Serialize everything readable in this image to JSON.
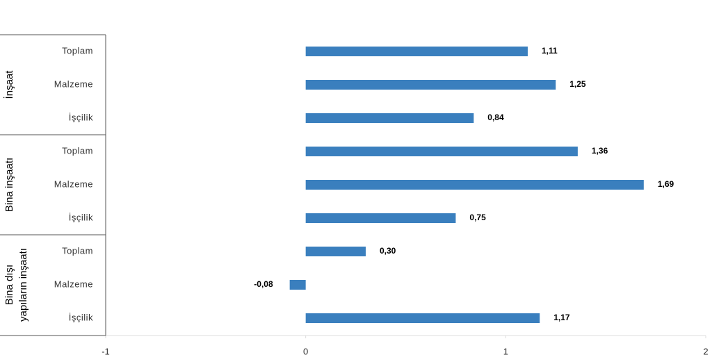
{
  "chart_data": {
    "type": "bar",
    "orientation": "horizontal",
    "color": "#3a7fbe",
    "groups": [
      {
        "name": [
          "İnşaat"
        ],
        "categories": [
          "Toplam",
          "Malzeme",
          "İşçilik"
        ],
        "values": [
          1.11,
          1.25,
          0.84
        ],
        "value_labels": [
          "1,11",
          "1,25",
          "0,84"
        ]
      },
      {
        "name": [
          "Bina inşaatı"
        ],
        "categories": [
          "Toplam",
          "Malzeme",
          "İşçilik"
        ],
        "values": [
          1.36,
          1.69,
          0.75
        ],
        "value_labels": [
          "1,36",
          "1,69",
          "0,75"
        ]
      },
      {
        "name": [
          "Bina dışı",
          "yapıların inşaatı"
        ],
        "categories": [
          "Toplam",
          "Malzeme",
          "İşçilik"
        ],
        "values": [
          0.3,
          -0.08,
          1.17
        ],
        "value_labels": [
          "0,30",
          "-0,08",
          "1,17"
        ]
      }
    ],
    "xlim": [
      -1,
      2
    ],
    "xticks": [
      -1,
      0,
      1,
      2
    ],
    "grid": false
  }
}
